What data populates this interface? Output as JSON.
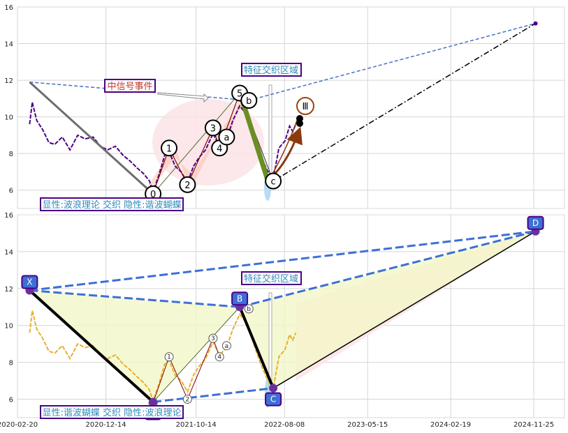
{
  "chart_data": [
    {
      "type": "line",
      "panel": "top",
      "ylim": [
        5.0,
        16.0
      ],
      "yticks": [
        6,
        8,
        10,
        12,
        14,
        16
      ],
      "grid": true,
      "xticks": [],
      "annotations": {
        "box_midsignal": "中信号事件",
        "box_feature": "特征交织区域",
        "box_bottom": "显性:波浪理论 交织 隐性:谐波蝴蝶",
        "roman": "Ⅲ"
      },
      "wave_points": [
        {
          "label": "0",
          "x": "2021-05-22",
          "y": 5.8
        },
        {
          "label": "1",
          "x": "2021-07-15",
          "y": 8.3
        },
        {
          "label": "2",
          "x": "2021-09-15",
          "y": 6.3
        },
        {
          "label": "3",
          "x": "2021-12-10",
          "y": 9.4
        },
        {
          "label": "4",
          "x": "2022-01-01",
          "y": 8.3
        },
        {
          "label": "5",
          "x": "2022-03-10",
          "y": 11.3
        },
        {
          "label": "a",
          "x": "2022-01-25",
          "y": 8.9
        },
        {
          "label": "b",
          "x": "2022-04-10",
          "y": 10.9
        },
        {
          "label": "c",
          "x": "2022-07-01",
          "y": 6.5
        }
      ],
      "series": [
        {
          "color": "#4b0082",
          "style": "dashed",
          "x": [
            "2020-04-01",
            "2020-04-10",
            "2020-04-25",
            "2020-05-15",
            "2020-06-05",
            "2020-06-25",
            "2020-07-20",
            "2020-08-15",
            "2020-09-10",
            "2020-10-05",
            "2020-11-01",
            "2020-11-25",
            "2020-12-20",
            "2021-01-15",
            "2021-02-10",
            "2021-03-05",
            "2021-03-30",
            "2021-04-20",
            "2021-05-10",
            "2021-05-22",
            "2021-06-10",
            "2021-06-30",
            "2021-07-15",
            "2021-08-05",
            "2021-08-25",
            "2021-09-15",
            "2021-10-05",
            "2021-10-25",
            "2021-11-15",
            "2021-12-10",
            "2022-01-01",
            "2022-01-25",
            "2022-02-15",
            "2022-03-10",
            "2022-03-25",
            "2022-04-10",
            "2022-04-30",
            "2022-05-20",
            "2022-06-10",
            "2022-07-01",
            "2022-07-20",
            "2022-08-10",
            "2022-08-25",
            "2022-09-05",
            "2022-09-15"
          ],
          "values": [
            9.6,
            10.8,
            9.8,
            9.3,
            8.6,
            8.5,
            8.9,
            8.2,
            9.0,
            8.8,
            8.9,
            8.4,
            8.2,
            8.4,
            7.9,
            7.6,
            7.2,
            6.9,
            6.5,
            5.9,
            6.8,
            7.9,
            8.1,
            7.3,
            7.0,
            6.4,
            7.3,
            7.8,
            8.2,
            9.1,
            8.4,
            8.8,
            9.8,
            10.6,
            10.3,
            9.9,
            8.8,
            7.9,
            7.1,
            6.6,
            8.3,
            8.7,
            9.5,
            9.2,
            9.6
          ]
        },
        {
          "color": "#4472c4",
          "style": "dashed",
          "x": [
            "2020-04-01",
            "2022-04-10"
          ],
          "values": [
            11.9,
            10.9
          ]
        },
        {
          "color": "#4472c4",
          "style": "dashed",
          "x": [
            "2022-04-10",
            "2024-12-01"
          ],
          "values": [
            10.9,
            15.1
          ]
        },
        {
          "color": "#000000",
          "style": "dashdot",
          "x": [
            "2022-07-01",
            "2024-12-01"
          ],
          "values": [
            6.5,
            15.1
          ]
        }
      ],
      "end_point": {
        "x": "2024-12-01",
        "y": 15.1
      }
    },
    {
      "type": "line",
      "panel": "bottom",
      "ylim": [
        5.0,
        16.0
      ],
      "yticks": [
        6,
        8,
        10,
        12,
        14,
        16
      ],
      "grid": true,
      "xticks": [
        "2020-02-20",
        "2020-12-14",
        "2021-10-14",
        "2022-08-08",
        "2023-05-15",
        "2024-02-19",
        "2024-11-25"
      ],
      "annotations": {
        "box_feature": "特征交织区域",
        "box_bottom": "显性:谐波蝴蝶 交织 隐性:波浪理论"
      },
      "xabcd": [
        {
          "label": "X",
          "x": "2020-04-01",
          "y": 11.9
        },
        {
          "label": "A",
          "x": "2021-05-22",
          "y": 5.85
        },
        {
          "label": "B",
          "x": "2022-03-10",
          "y": 11.0
        },
        {
          "label": "C",
          "x": "2022-07-01",
          "y": 6.6
        },
        {
          "label": "D",
          "x": "2024-12-01",
          "y": 15.1
        }
      ],
      "wave_points": [
        {
          "label": "0",
          "x": "2021-05-22",
          "y": 5.8
        },
        {
          "label": "1",
          "x": "2021-07-15",
          "y": 8.3
        },
        {
          "label": "2",
          "x": "2021-09-15",
          "y": 6.0
        },
        {
          "label": "3",
          "x": "2021-12-10",
          "y": 9.3
        },
        {
          "label": "4",
          "x": "2022-01-01",
          "y": 8.3
        },
        {
          "label": "a",
          "x": "2022-01-25",
          "y": 8.9
        },
        {
          "label": "b",
          "x": "2022-04-10",
          "y": 10.9
        }
      ],
      "series": [
        {
          "color": "#e6b030",
          "style": "dashed",
          "x": [
            "2020-04-01",
            "2020-04-10",
            "2020-04-25",
            "2020-05-15",
            "2020-06-05",
            "2020-06-25",
            "2020-07-20",
            "2020-08-15",
            "2020-09-10",
            "2020-10-05",
            "2020-11-01",
            "2020-11-25",
            "2020-12-20",
            "2021-01-15",
            "2021-02-10",
            "2021-03-05",
            "2021-03-30",
            "2021-04-20",
            "2021-05-10",
            "2021-05-22",
            "2021-06-10",
            "2021-06-30",
            "2021-07-15",
            "2021-08-05",
            "2021-08-25",
            "2021-09-15",
            "2021-10-05",
            "2021-10-25",
            "2021-11-15",
            "2021-12-10",
            "2022-01-01",
            "2022-01-25",
            "2022-02-15",
            "2022-03-10",
            "2022-03-25",
            "2022-04-10",
            "2022-04-30",
            "2022-05-20",
            "2022-06-10",
            "2022-07-01",
            "2022-07-20",
            "2022-08-10",
            "2022-08-25",
            "2022-09-05",
            "2022-09-15"
          ],
          "values": [
            9.6,
            10.8,
            9.8,
            9.3,
            8.6,
            8.5,
            8.9,
            8.2,
            9.0,
            8.8,
            8.9,
            8.4,
            8.2,
            8.4,
            7.9,
            7.6,
            7.2,
            6.9,
            6.5,
            5.9,
            6.8,
            7.9,
            8.1,
            7.3,
            7.0,
            6.4,
            7.3,
            7.8,
            8.2,
            9.1,
            8.4,
            8.8,
            9.8,
            10.6,
            10.3,
            9.9,
            8.8,
            7.9,
            7.1,
            6.6,
            8.3,
            8.7,
            9.5,
            9.2,
            9.6
          ]
        }
      ]
    }
  ]
}
